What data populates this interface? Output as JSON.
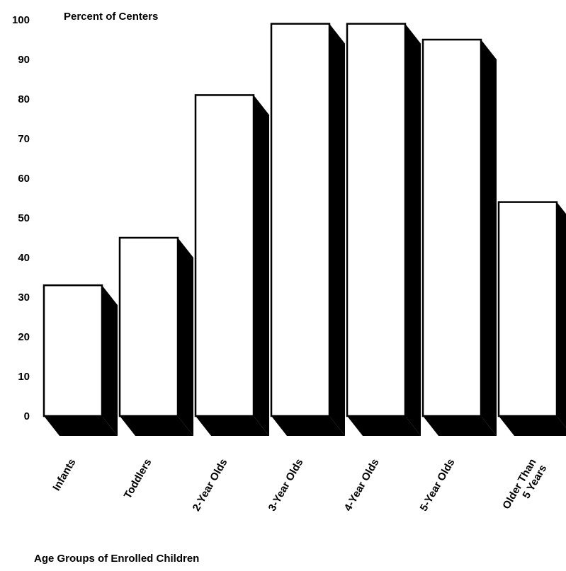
{
  "chart_data": {
    "type": "bar",
    "title": "",
    "ylabel": "Percent of Centers",
    "xlabel": "Age Groups of Enrolled Children",
    "categories": [
      "Infants",
      "Toddlers",
      "2-Year Olds",
      "3-Year Olds",
      "4-Year Olds",
      "5-Year Olds",
      "Older Than\n5 Years"
    ],
    "values": [
      33,
      45,
      81,
      99,
      99,
      95,
      54
    ],
    "ylim": [
      0,
      100
    ],
    "yticks": [
      0,
      10,
      20,
      30,
      40,
      50,
      60,
      70,
      80,
      90,
      100
    ],
    "grid": false,
    "style": "3d",
    "bar_color": "#ffffff",
    "shadow_color": "#000000"
  }
}
